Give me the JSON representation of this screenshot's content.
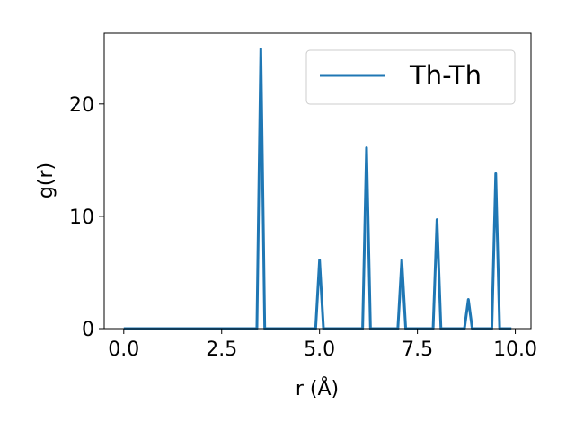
{
  "chart_data": {
    "type": "line",
    "xlabel": "r (Å)",
    "ylabel": "g(r)",
    "xlim": [
      -0.5,
      10.4
    ],
    "ylim": [
      0,
      26.3
    ],
    "xticks": [
      0.0,
      2.5,
      5.0,
      7.5,
      10.0
    ],
    "xtick_labels": [
      "0.0",
      "2.5",
      "5.0",
      "7.5",
      "10.0"
    ],
    "yticks": [
      0,
      10,
      20
    ],
    "ytick_labels": [
      "0",
      "10",
      "20"
    ],
    "grid": false,
    "legend_position": "top-right",
    "series": [
      {
        "name": "Th-Th",
        "color": "#1f77b4",
        "x": [
          0.0,
          3.4,
          3.5,
          3.6,
          4.9,
          5.0,
          5.1,
          6.1,
          6.2,
          6.3,
          7.0,
          7.1,
          7.2,
          7.9,
          8.0,
          8.1,
          8.7,
          8.8,
          8.9,
          9.4,
          9.5,
          9.6,
          9.9
        ],
        "y": [
          0.0,
          0.0,
          24.9,
          0.0,
          0.0,
          6.1,
          0.0,
          0.0,
          16.1,
          0.0,
          0.0,
          6.1,
          0.0,
          0.0,
          9.7,
          0.0,
          0.0,
          2.6,
          0.0,
          0.0,
          13.8,
          0.0,
          0.0
        ]
      }
    ]
  }
}
